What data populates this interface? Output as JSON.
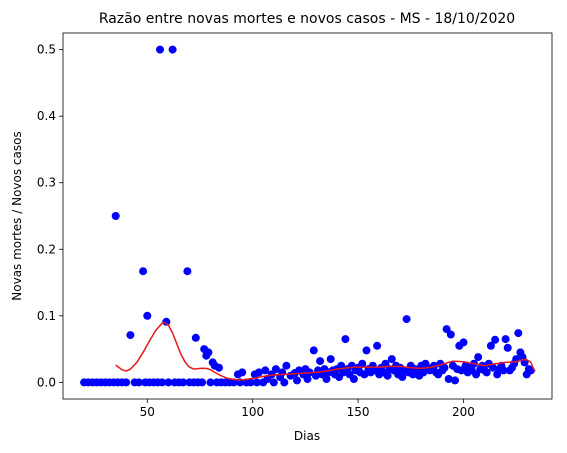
{
  "chart_data": {
    "type": "scatter",
    "title": "Razão entre novas mortes e novos casos - MS - 18/10/2020",
    "xlabel": "Dias",
    "ylabel": "Novas mortes / Novos casos",
    "xlim": [
      10,
      242
    ],
    "ylim": [
      -0.025,
      0.525
    ],
    "x_ticks": [
      50,
      100,
      150,
      200
    ],
    "x_tick_labels": [
      "50",
      "100",
      "150",
      "200"
    ],
    "y_ticks": [
      0.0,
      0.1,
      0.2,
      0.3,
      0.4,
      0.5
    ],
    "y_tick_labels": [
      "0.0",
      "0.1",
      "0.2",
      "0.3",
      "0.4",
      "0.5"
    ],
    "grid": false,
    "legend": "none",
    "colors": {
      "points": "#0000ff",
      "trend": "#e41a1c",
      "axes": "#000000",
      "background": "#ffffff"
    },
    "series": [
      {
        "type": "scatter",
        "points": [
          [
            20,
            0
          ],
          [
            22,
            0
          ],
          [
            24,
            0
          ],
          [
            26,
            0
          ],
          [
            28,
            0
          ],
          [
            30,
            0
          ],
          [
            32,
            0
          ],
          [
            34,
            0
          ],
          [
            35,
            0.25
          ],
          [
            36,
            0
          ],
          [
            38,
            0
          ],
          [
            40,
            0
          ],
          [
            42,
            0.071
          ],
          [
            44,
            0
          ],
          [
            46,
            0
          ],
          [
            48,
            0.167
          ],
          [
            49,
            0
          ],
          [
            50,
            0.1
          ],
          [
            51,
            0
          ],
          [
            53,
            0
          ],
          [
            55,
            0
          ],
          [
            56,
            0.5
          ],
          [
            57,
            0
          ],
          [
            59,
            0.091
          ],
          [
            60,
            0
          ],
          [
            62,
            0.5
          ],
          [
            63,
            0
          ],
          [
            65,
            0
          ],
          [
            67,
            0
          ],
          [
            69,
            0.167
          ],
          [
            70,
            0
          ],
          [
            72,
            0
          ],
          [
            73,
            0.067
          ],
          [
            74,
            0
          ],
          [
            76,
            0
          ],
          [
            77,
            0.05
          ],
          [
            78,
            0.04
          ],
          [
            79,
            0.045
          ],
          [
            80,
            0
          ],
          [
            81,
            0.03
          ],
          [
            82,
            0.025
          ],
          [
            83,
            0
          ],
          [
            84,
            0.022
          ],
          [
            85,
            0
          ],
          [
            87,
            0
          ],
          [
            89,
            0
          ],
          [
            91,
            0
          ],
          [
            93,
            0.012
          ],
          [
            94,
            0
          ],
          [
            95,
            0.015
          ],
          [
            97,
            0
          ],
          [
            99,
            0
          ],
          [
            101,
            0.012
          ],
          [
            102,
            0
          ],
          [
            103,
            0.015
          ],
          [
            105,
            0
          ],
          [
            106,
            0.018
          ],
          [
            107,
            0.005
          ],
          [
            109,
            0.012
          ],
          [
            110,
            0
          ],
          [
            111,
            0.02
          ],
          [
            113,
            0.008
          ],
          [
            114,
            0.015
          ],
          [
            115,
            0
          ],
          [
            116,
            0.025
          ],
          [
            118,
            0.01
          ],
          [
            120,
            0.014
          ],
          [
            121,
            0.003
          ],
          [
            122,
            0.018
          ],
          [
            124,
            0.012
          ],
          [
            125,
            0.02
          ],
          [
            126,
            0.005
          ],
          [
            127,
            0.015
          ],
          [
            129,
            0.048
          ],
          [
            130,
            0.01
          ],
          [
            131,
            0.018
          ],
          [
            132,
            0.032
          ],
          [
            133,
            0.012
          ],
          [
            134,
            0.02
          ],
          [
            135,
            0.005
          ],
          [
            136,
            0.015
          ],
          [
            137,
            0.035
          ],
          [
            138,
            0.018
          ],
          [
            139,
            0.012
          ],
          [
            140,
            0.02
          ],
          [
            141,
            0.008
          ],
          [
            142,
            0.025
          ],
          [
            143,
            0.015
          ],
          [
            144,
            0.065
          ],
          [
            145,
            0.02
          ],
          [
            146,
            0.012
          ],
          [
            147,
            0.025
          ],
          [
            148,
            0.005
          ],
          [
            149,
            0.018
          ],
          [
            150,
            0.022
          ],
          [
            151,
            0.015
          ],
          [
            152,
            0.028
          ],
          [
            153,
            0.012
          ],
          [
            154,
            0.048
          ],
          [
            155,
            0.02
          ],
          [
            156,
            0.015
          ],
          [
            157,
            0.025
          ],
          [
            158,
            0.018
          ],
          [
            159,
            0.055
          ],
          [
            160,
            0.012
          ],
          [
            161,
            0.022
          ],
          [
            162,
            0.015
          ],
          [
            163,
            0.028
          ],
          [
            164,
            0.01
          ],
          [
            165,
            0.02
          ],
          [
            166,
            0.035
          ],
          [
            167,
            0.018
          ],
          [
            168,
            0.025
          ],
          [
            169,
            0.012
          ],
          [
            170,
            0.022
          ],
          [
            171,
            0.008
          ],
          [
            172,
            0.018
          ],
          [
            173,
            0.095
          ],
          [
            174,
            0.015
          ],
          [
            175,
            0.025
          ],
          [
            176,
            0.012
          ],
          [
            177,
            0.02
          ],
          [
            178,
            0.018
          ],
          [
            179,
            0.01
          ],
          [
            180,
            0.025
          ],
          [
            181,
            0.015
          ],
          [
            182,
            0.028
          ],
          [
            183,
            0.02
          ],
          [
            184,
            0.018
          ],
          [
            185,
            0.022
          ],
          [
            186,
            0.025
          ],
          [
            187,
            0.015
          ],
          [
            188,
            0.012
          ],
          [
            189,
            0.028
          ],
          [
            190,
            0.018
          ],
          [
            191,
            0.022
          ],
          [
            192,
            0.08
          ],
          [
            193,
            0.005
          ],
          [
            194,
            0.072
          ],
          [
            195,
            0.025
          ],
          [
            196,
            0.003
          ],
          [
            197,
            0.02
          ],
          [
            198,
            0.055
          ],
          [
            199,
            0.018
          ],
          [
            200,
            0.06
          ],
          [
            201,
            0.025
          ],
          [
            202,
            0.015
          ],
          [
            203,
            0.022
          ],
          [
            204,
            0.018
          ],
          [
            205,
            0.028
          ],
          [
            206,
            0.012
          ],
          [
            207,
            0.038
          ],
          [
            208,
            0.02
          ],
          [
            209,
            0.025
          ],
          [
            210,
            0.018
          ],
          [
            211,
            0.015
          ],
          [
            212,
            0.028
          ],
          [
            213,
            0.055
          ],
          [
            214,
            0.022
          ],
          [
            215,
            0.064
          ],
          [
            216,
            0.012
          ],
          [
            217,
            0.02
          ],
          [
            218,
            0.025
          ],
          [
            219,
            0.018
          ],
          [
            220,
            0.065
          ],
          [
            221,
            0.052
          ],
          [
            222,
            0.018
          ],
          [
            223,
            0.022
          ],
          [
            224,
            0.028
          ],
          [
            225,
            0.035
          ],
          [
            226,
            0.074
          ],
          [
            227,
            0.045
          ],
          [
            228,
            0.038
          ],
          [
            229,
            0.03
          ],
          [
            230,
            0.012
          ],
          [
            231,
            0.02
          ],
          [
            232,
            0.018
          ]
        ]
      },
      {
        "type": "line",
        "points": [
          [
            35,
            0.026
          ],
          [
            38,
            0.019
          ],
          [
            40,
            0.017
          ],
          [
            42,
            0.02
          ],
          [
            45,
            0.03
          ],
          [
            48,
            0.045
          ],
          [
            51,
            0.062
          ],
          [
            54,
            0.078
          ],
          [
            57,
            0.089
          ],
          [
            58,
            0.09
          ],
          [
            60,
            0.086
          ],
          [
            62,
            0.074
          ],
          [
            64,
            0.058
          ],
          [
            66,
            0.042
          ],
          [
            68,
            0.03
          ],
          [
            70,
            0.023
          ],
          [
            72,
            0.02
          ],
          [
            75,
            0.021
          ],
          [
            78,
            0.021
          ],
          [
            80,
            0.019
          ],
          [
            82,
            0.015
          ],
          [
            85,
            0.01
          ],
          [
            88,
            0.006
          ],
          [
            92,
            0.004
          ],
          [
            96,
            0.004
          ],
          [
            100,
            0.006
          ],
          [
            105,
            0.009
          ],
          [
            110,
            0.011
          ],
          [
            115,
            0.012
          ],
          [
            120,
            0.013
          ],
          [
            125,
            0.014
          ],
          [
            130,
            0.015
          ],
          [
            135,
            0.017
          ],
          [
            140,
            0.02
          ],
          [
            145,
            0.022
          ],
          [
            150,
            0.023
          ],
          [
            155,
            0.023
          ],
          [
            160,
            0.023
          ],
          [
            165,
            0.024
          ],
          [
            170,
            0.024
          ],
          [
            175,
            0.022
          ],
          [
            180,
            0.021
          ],
          [
            185,
            0.023
          ],
          [
            190,
            0.027
          ],
          [
            195,
            0.032
          ],
          [
            200,
            0.031
          ],
          [
            205,
            0.028
          ],
          [
            210,
            0.025
          ],
          [
            215,
            0.028
          ],
          [
            220,
            0.03
          ],
          [
            225,
            0.031
          ],
          [
            228,
            0.034
          ],
          [
            230,
            0.034
          ],
          [
            232,
            0.03
          ],
          [
            233,
            0.022
          ],
          [
            234,
            0.017
          ]
        ]
      }
    ]
  }
}
